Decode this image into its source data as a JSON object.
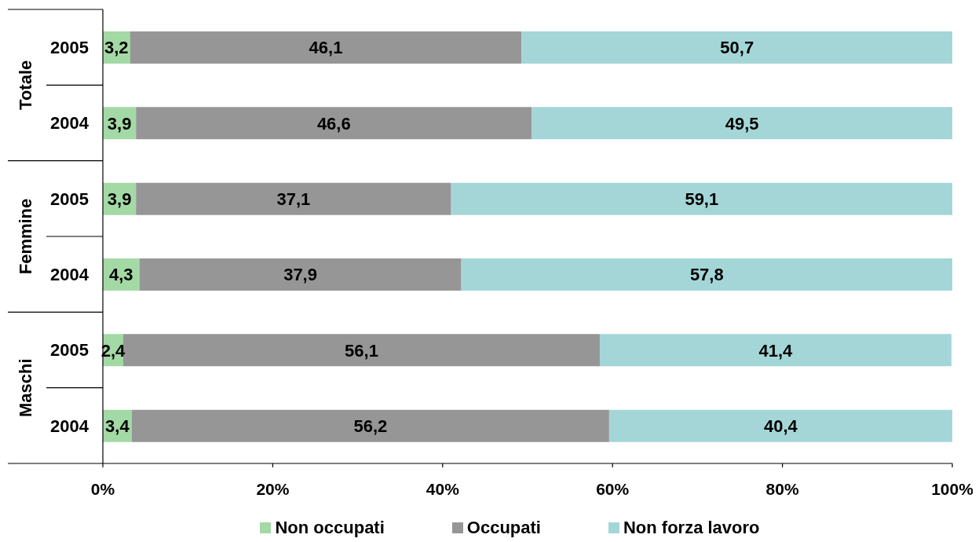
{
  "chart_data": {
    "type": "bar",
    "orientation": "horizontal",
    "stacked": true,
    "categories": [
      "2005",
      "2004",
      "2005",
      "2004",
      "2005",
      "2004"
    ],
    "annotations": [
      "Totale",
      "Femmine",
      "Maschi"
    ],
    "series": [
      {
        "name": "Non occupati",
        "color": "#a3d9a5",
        "values": [
          3.2,
          3.9,
          3.9,
          4.3,
          2.4,
          3.4
        ],
        "value_labels": [
          "3,2",
          "3,9",
          "3,9",
          "4,3",
          "2,4",
          "3,4"
        ]
      },
      {
        "name": "Occupati",
        "color": "#969696",
        "values": [
          46.1,
          46.6,
          37.1,
          37.9,
          56.1,
          56.2
        ],
        "value_labels": [
          "46,1",
          "46,6",
          "37,1",
          "37,9",
          "56,1",
          "56,2"
        ]
      },
      {
        "name": "Non forza lavoro",
        "color": "#a4d6d7",
        "values": [
          50.7,
          49.5,
          59.1,
          57.8,
          41.4,
          40.4
        ],
        "value_labels": [
          "50,7",
          "49,5",
          "59,1",
          "57,8",
          "41,4",
          "40,4"
        ]
      }
    ],
    "xlim": [
      0,
      100
    ],
    "xticks": [
      {
        "value": 0,
        "label": "0%"
      },
      {
        "value": 20,
        "label": "20%"
      },
      {
        "value": 40,
        "label": "40%"
      },
      {
        "value": 60,
        "label": "60%"
      },
      {
        "value": 80,
        "label": "80%"
      },
      {
        "value": 100,
        "label": "100%"
      }
    ],
    "legend": "bottom"
  }
}
